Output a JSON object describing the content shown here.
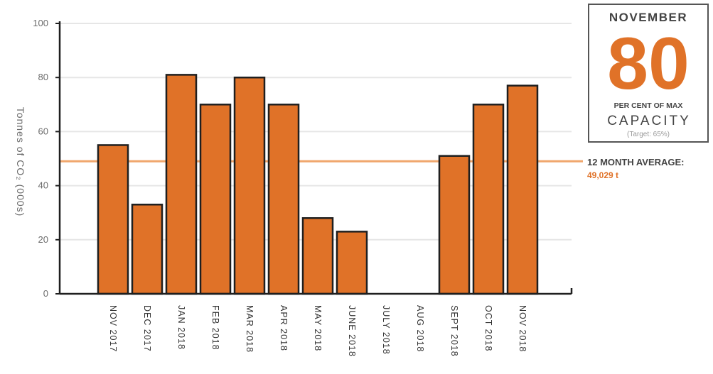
{
  "chart_data": {
    "type": "bar",
    "title": "",
    "xlabel": "",
    "ylabel": "Tonnes of CO₂ (000s)",
    "ylim": [
      0,
      100
    ],
    "yticks": [
      0,
      20,
      40,
      60,
      80,
      100
    ],
    "grid": true,
    "categories": [
      "NOV 2017",
      "DEC 2017",
      "JAN 2018",
      "FEB 2018",
      "MAR 2018",
      "APR 2018",
      "MAY 2018",
      "JUNE 2018",
      "JULY 2018",
      "AUG 2018",
      "SEPT 2018",
      "OCT 2018",
      "NOV 2018"
    ],
    "values": [
      55,
      33,
      81,
      70,
      80,
      70,
      28,
      23,
      0,
      0,
      51,
      70,
      77
    ],
    "average_line": {
      "value": 49.029,
      "label": "12 MONTH AVERAGE:",
      "value_label": "49,029 t"
    }
  },
  "callout": {
    "month": "NOVEMBER",
    "value": "80",
    "subtitle": "PER CENT OF MAX",
    "caption": "CAPACITY",
    "target": "(Target: 65%)"
  },
  "colors": {
    "bar": "#e07228",
    "average_line": "#f0a66b",
    "grid": "#e6e6e6",
    "axis": "#1f1f1f"
  }
}
